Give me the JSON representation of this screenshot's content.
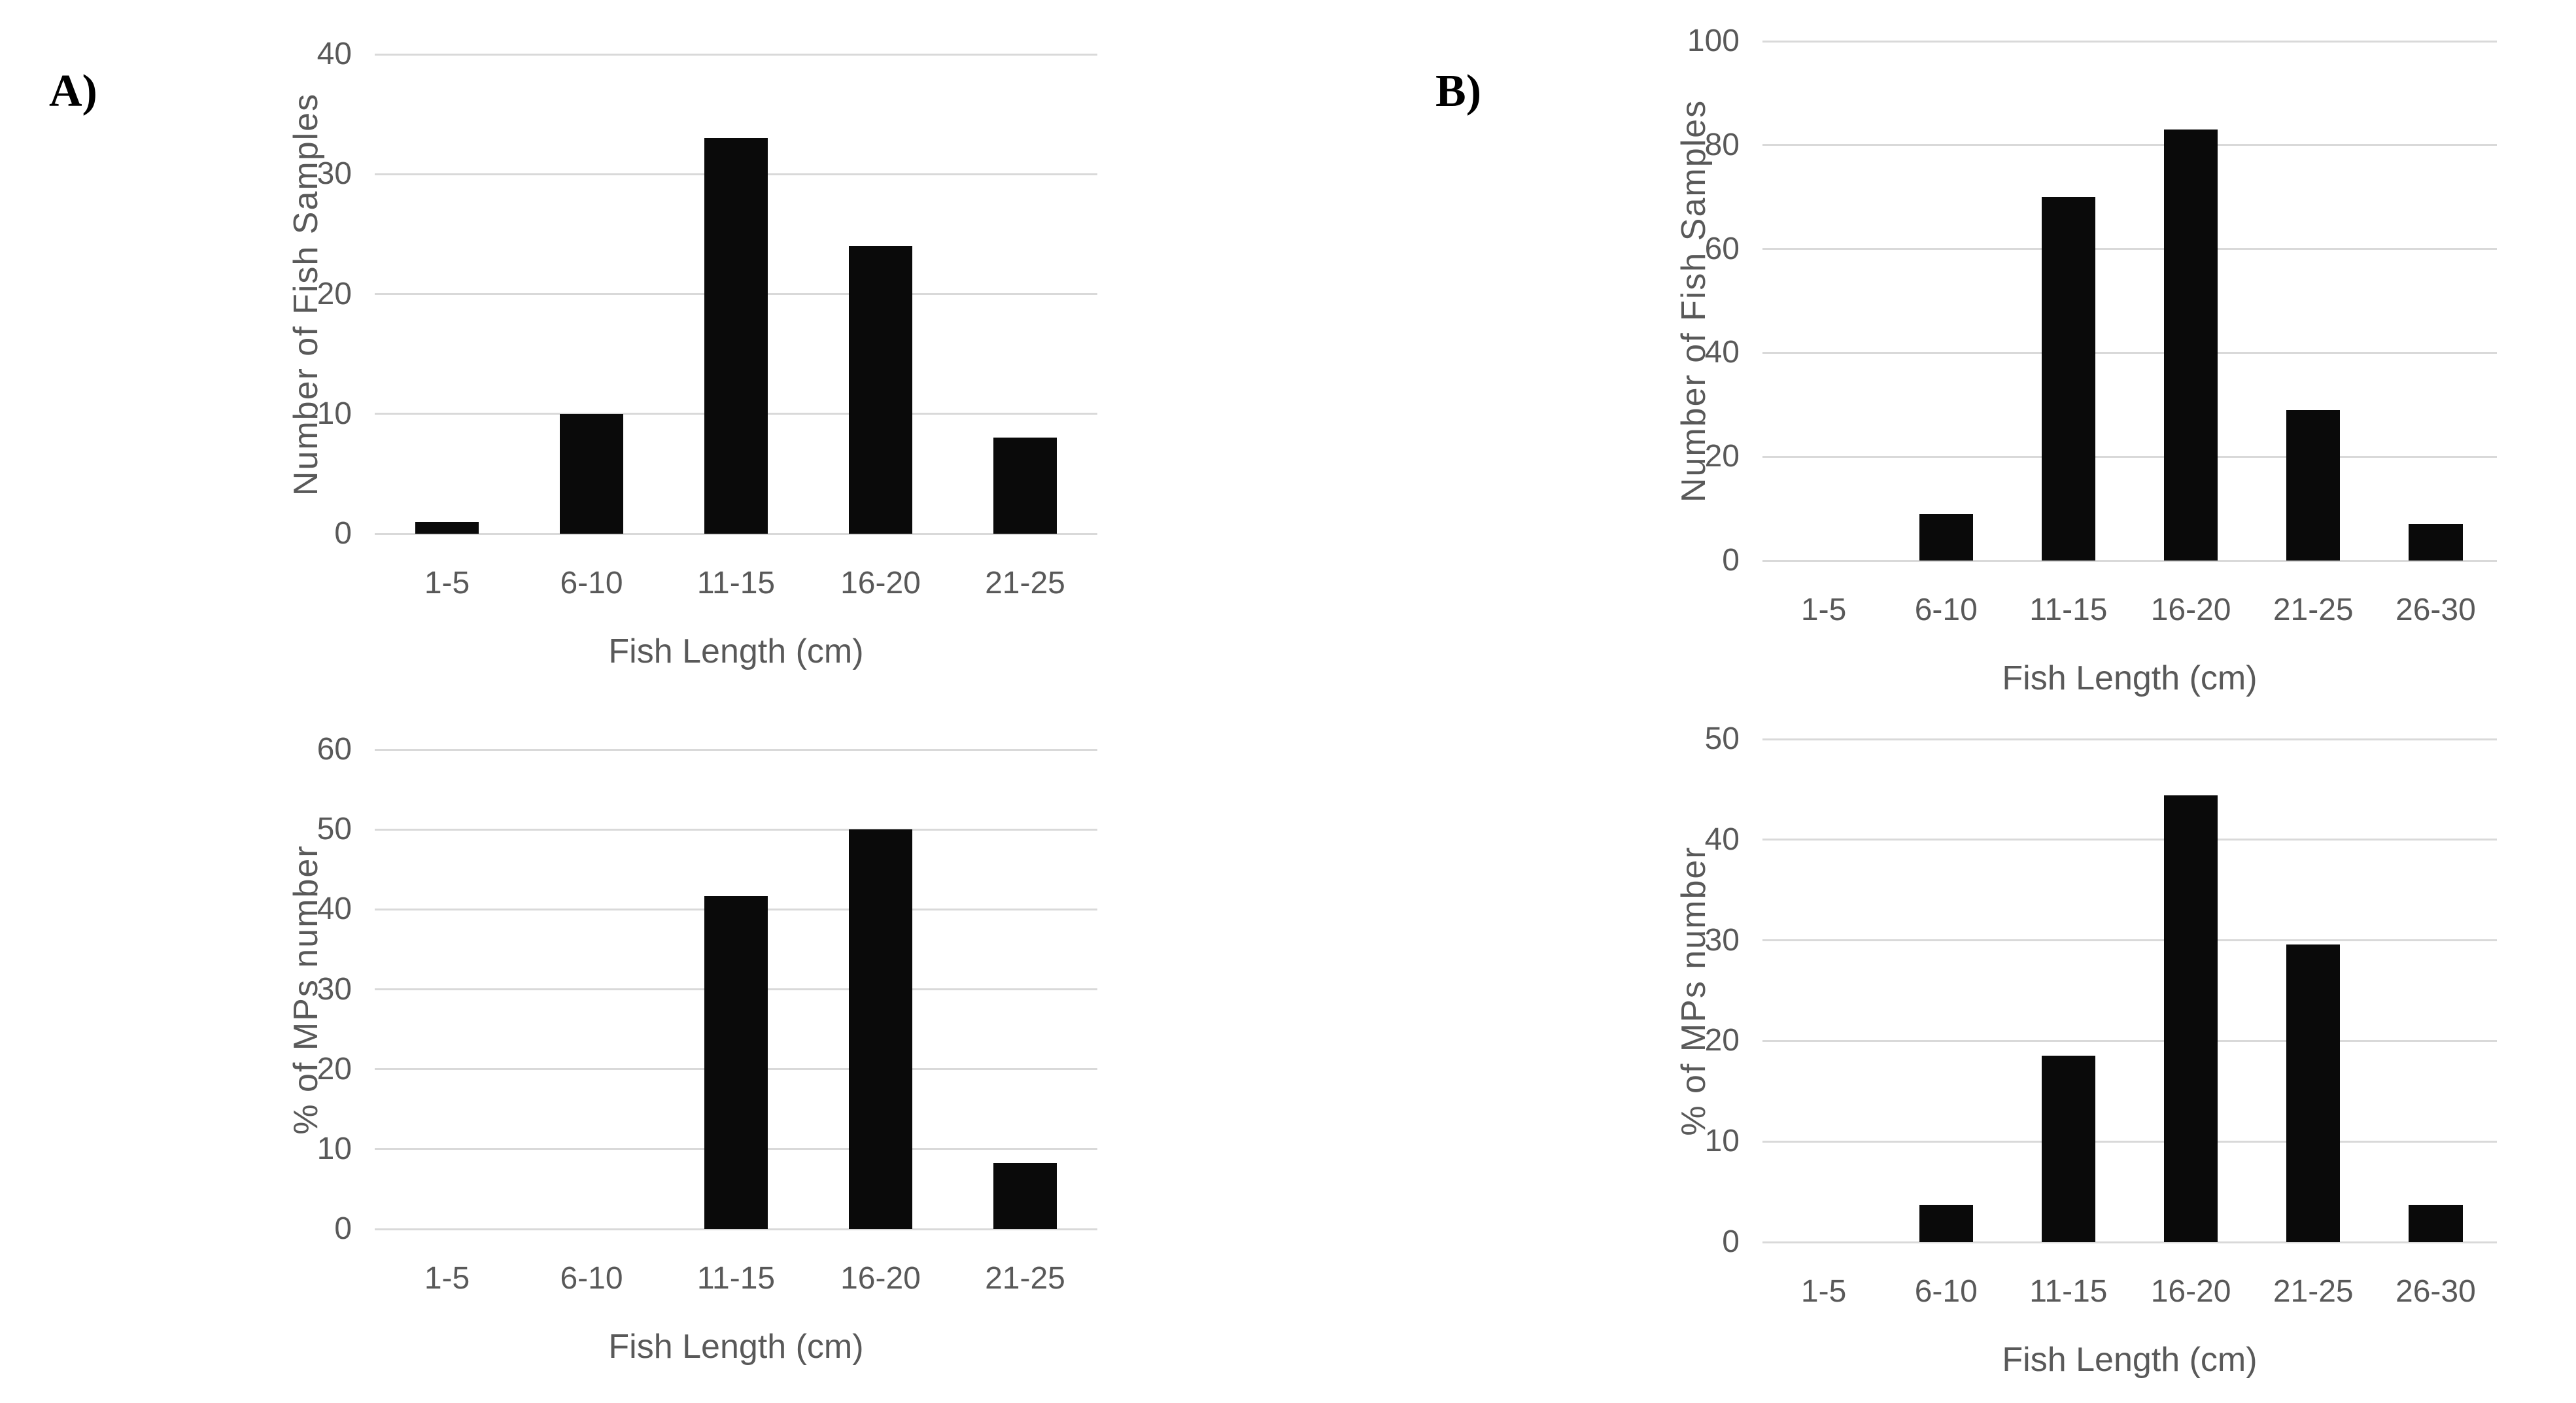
{
  "page": {
    "background": "#ffffff"
  },
  "panels": [
    {
      "label": "A)"
    },
    {
      "label": "B)"
    }
  ],
  "colors": {
    "bar": "#0a0a0a",
    "gridline": "#d9d9d9",
    "axis_text": "#595959",
    "panel_label": "#000000"
  },
  "chart_data": [
    {
      "id": "A-fish-samples",
      "panel": "A",
      "type": "bar",
      "title": "",
      "categories": [
        "1-5",
        "6-10",
        "11-15",
        "16-20",
        "21-25"
      ],
      "values": [
        1,
        10,
        33,
        24,
        8
      ],
      "xlabel": "Fish Length (cm)",
      "ylabel": "Number of Fish Samples",
      "ylim": [
        0,
        40
      ],
      "yticks": [
        0,
        10,
        20,
        30,
        40
      ],
      "grid": true,
      "legend": "none"
    },
    {
      "id": "B-fish-samples",
      "panel": "B",
      "type": "bar",
      "title": "",
      "categories": [
        "1-5",
        "6-10",
        "11-15",
        "16-20",
        "21-25",
        "26-30"
      ],
      "values": [
        0,
        9,
        70,
        83,
        29,
        7
      ],
      "xlabel": "Fish Length (cm)",
      "ylabel": "Number of Fish Samples",
      "ylim": [
        0,
        100
      ],
      "yticks": [
        0,
        20,
        40,
        60,
        80,
        100
      ],
      "grid": true,
      "legend": "none"
    },
    {
      "id": "A-mps-percent",
      "panel": "A",
      "type": "bar",
      "title": "",
      "categories": [
        "1-5",
        "6-10",
        "11-15",
        "16-20",
        "21-25"
      ],
      "values": [
        0,
        0,
        41.7,
        50,
        8.3
      ],
      "xlabel": "Fish Length (cm)",
      "ylabel": "% of MPs number",
      "ylim": [
        0,
        60
      ],
      "yticks": [
        0,
        10,
        20,
        30,
        40,
        50,
        60
      ],
      "grid": true,
      "legend": "none"
    },
    {
      "id": "B-mps-percent",
      "panel": "B",
      "type": "bar",
      "title": "",
      "categories": [
        "1-5",
        "6-10",
        "11-15",
        "16-20",
        "21-25",
        "26-30"
      ],
      "values": [
        0,
        3.7,
        18.5,
        44.4,
        29.6,
        3.7
      ],
      "xlabel": "Fish Length (cm)",
      "ylabel": "% of MPs number",
      "ylim": [
        0,
        50
      ],
      "yticks": [
        0,
        10,
        20,
        30,
        40,
        50
      ],
      "grid": true,
      "legend": "none"
    }
  ]
}
